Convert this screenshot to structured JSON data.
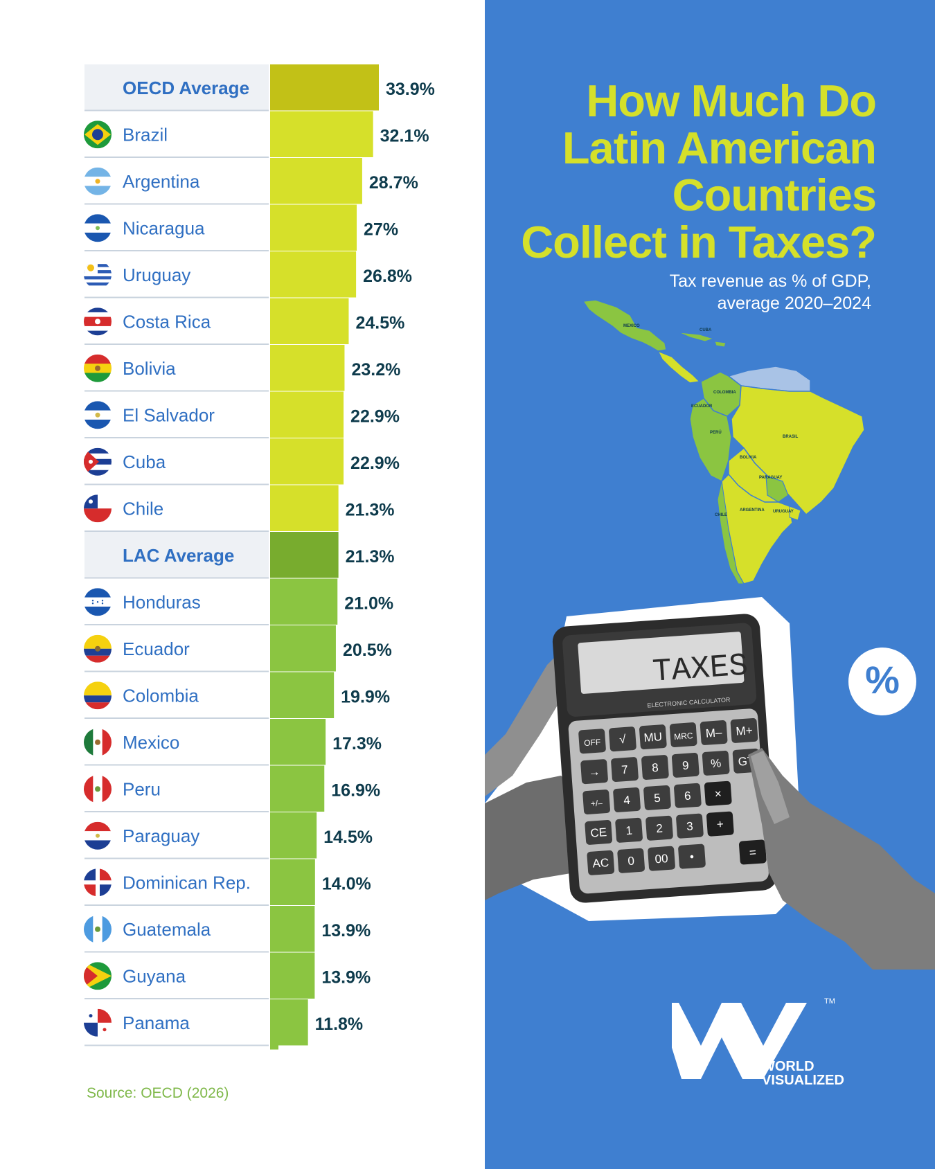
{
  "header": {
    "title_lines": [
      "How Much Do",
      "Latin American",
      "Countries",
      "Collect in Taxes?"
    ],
    "subtitle_lines": [
      "Tax revenue as % of GDP,",
      "average 2020–2024"
    ]
  },
  "source": "Source: OECD (2026)",
  "brand": {
    "line1": "WORLD",
    "line2": "VISUALIZED",
    "tm": "TM"
  },
  "illustration": {
    "calculator_display": "TAXES",
    "calculator_brand": "ELECTRONIC CALCULATOR",
    "calculator_keys": [
      "OFF",
      "√",
      "MU",
      "MRC",
      "M–",
      "M+",
      "→",
      "7",
      "8",
      "9",
      "%",
      "GT",
      "+/–",
      "4",
      "5",
      "6",
      "×",
      "CE",
      "1",
      "2",
      "3",
      "+",
      "AC",
      "0",
      "00",
      "•",
      "="
    ],
    "map_labels": [
      "MEXICO",
      "CUBA",
      "COLOMBIA",
      "ECUADOR",
      "PERÚ",
      "BRASIL",
      "BOLIVIA",
      "PARAGUAY",
      "CHILE",
      "ARGENTINA",
      "URUGUAY"
    ],
    "badge_icon": "percent-icon",
    "badge_glyph": "%"
  },
  "colors": {
    "background_right": "#3f7fd0",
    "title": "#d5e02a",
    "oecd_bar": "#c2c117",
    "high_bar": "#d6e02a",
    "lac_bar": "#78ac2e",
    "low_bar": "#8bc541",
    "label_text": "#2f6fc2",
    "value_text": "#0e3b4c",
    "average_row_bg": "#eef1f5"
  },
  "chart_data": {
    "type": "bar",
    "orientation": "horizontal",
    "title": "How Much Do Latin American Countries Collect in Taxes?",
    "subtitle": "Tax revenue as % of GDP, average 2020–2024",
    "value_suffix": "%",
    "rows": [
      {
        "label": "OECD Average",
        "value": 33.9,
        "value_label": "33.9%",
        "average": true,
        "group": "oecd"
      },
      {
        "label": "Brazil",
        "value": 32.1,
        "value_label": "32.1%",
        "flag": "brazil",
        "group": "high"
      },
      {
        "label": "Argentina",
        "value": 28.7,
        "value_label": "28.7%",
        "flag": "argentina",
        "group": "high"
      },
      {
        "label": "Nicaragua",
        "value": 27.0,
        "value_label": "27%",
        "flag": "nicaragua",
        "group": "high"
      },
      {
        "label": "Uruguay",
        "value": 26.8,
        "value_label": "26.8%",
        "flag": "uruguay",
        "group": "high"
      },
      {
        "label": "Costa Rica",
        "value": 24.5,
        "value_label": "24.5%",
        "flag": "costa-rica",
        "group": "high"
      },
      {
        "label": "Bolivia",
        "value": 23.2,
        "value_label": "23.2%",
        "flag": "bolivia",
        "group": "high"
      },
      {
        "label": "El Salvador",
        "value": 22.9,
        "value_label": "22.9%",
        "flag": "el-salvador",
        "group": "high"
      },
      {
        "label": "Cuba",
        "value": 22.9,
        "value_label": "22.9%",
        "flag": "cuba",
        "group": "high"
      },
      {
        "label": "Chile",
        "value": 21.3,
        "value_label": "21.3%",
        "flag": "chile",
        "group": "high"
      },
      {
        "label": "LAC Average",
        "value": 21.3,
        "value_label": "21.3%",
        "average": true,
        "group": "lac"
      },
      {
        "label": "Honduras",
        "value": 21.0,
        "value_label": "21.0%",
        "flag": "honduras",
        "group": "low"
      },
      {
        "label": "Ecuador",
        "value": 20.5,
        "value_label": "20.5%",
        "flag": "ecuador",
        "group": "low"
      },
      {
        "label": "Colombia",
        "value": 19.9,
        "value_label": "19.9%",
        "flag": "colombia",
        "group": "low"
      },
      {
        "label": "Mexico",
        "value": 17.3,
        "value_label": "17.3%",
        "flag": "mexico",
        "group": "low"
      },
      {
        "label": "Peru",
        "value": 16.9,
        "value_label": "16.9%",
        "flag": "peru",
        "group": "low"
      },
      {
        "label": "Paraguay",
        "value": 14.5,
        "value_label": "14.5%",
        "flag": "paraguay",
        "group": "low"
      },
      {
        "label": "Dominican Rep.",
        "value": 14.0,
        "value_label": "14.0%",
        "flag": "dominican-rep",
        "group": "low"
      },
      {
        "label": "Guatemala",
        "value": 13.9,
        "value_label": "13.9%",
        "flag": "guatemala",
        "group": "low"
      },
      {
        "label": "Guyana",
        "value": 13.9,
        "value_label": "13.9%",
        "flag": "guyana",
        "group": "low"
      },
      {
        "label": "Panama",
        "value": 11.8,
        "value_label": "11.8%",
        "flag": "panama",
        "group": "low"
      }
    ],
    "xlim": [
      0,
      35
    ],
    "grid": false,
    "legend": "none"
  }
}
